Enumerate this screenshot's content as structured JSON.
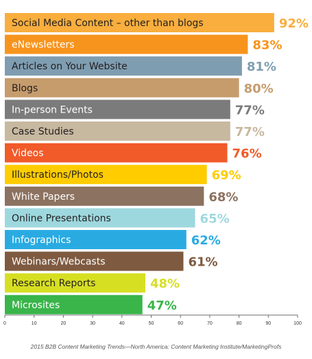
{
  "chart_data": {
    "type": "bar",
    "orientation": "horizontal",
    "categories": [
      "Social Media Content – other than blogs",
      "eNewsletters",
      "Articles on Your Website",
      "Blogs",
      "In-person Events",
      "Case Studies",
      "Videos",
      "Illustrations/Photos",
      "White Papers",
      "Online Presentations",
      "Infographics",
      "Webinars/Webcasts",
      "Research Reports",
      "Microsites"
    ],
    "values": [
      92,
      83,
      81,
      80,
      77,
      77,
      76,
      69,
      68,
      65,
      62,
      61,
      48,
      47
    ],
    "value_labels": [
      "92%",
      "83%",
      "81%",
      "80%",
      "77%",
      "77%",
      "76%",
      "69%",
      "68%",
      "65%",
      "62%",
      "61%",
      "48%",
      "47%"
    ],
    "colors": [
      "#F9AE3D",
      "#F7941D",
      "#7F9DB1",
      "#C69C6D",
      "#7B7B7B",
      "#C7B8A0",
      "#F15A29",
      "#FFCC00",
      "#8C7260",
      "#9ED8DF",
      "#29ABE2",
      "#7E5A40",
      "#D7DF23",
      "#39B54A"
    ],
    "label_text_colors": [
      "#231F20",
      "#FFFFFF",
      "#231F20",
      "#231F20",
      "#FFFFFF",
      "#231F20",
      "#FFFFFF",
      "#231F20",
      "#FFFFFF",
      "#231F20",
      "#FFFFFF",
      "#FFFFFF",
      "#231F20",
      "#FFFFFF"
    ],
    "x_ticks": [
      0,
      10,
      20,
      30,
      40,
      50,
      60,
      70,
      80,
      90,
      100
    ],
    "xlim": [
      0,
      100
    ],
    "grid": false,
    "legend": "none",
    "source": "2015 B2B Content Marketing Trends—North America: Content Marketing Institute/MarketingProfs"
  }
}
